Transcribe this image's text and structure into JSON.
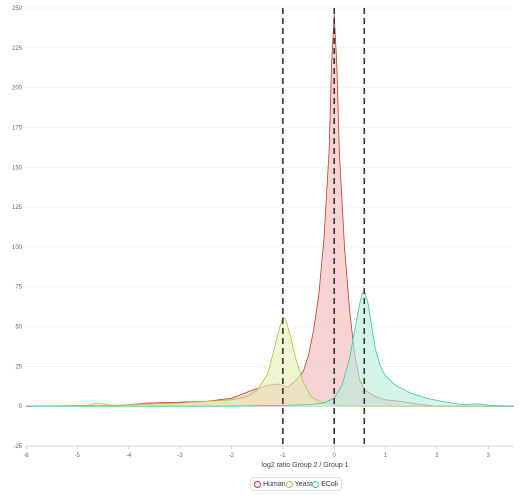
{
  "chart_data": {
    "type": "area",
    "xlabel": "log2 ratio Group 2 / Group 1",
    "ylabel": "",
    "xlim": [
      -6,
      3.5
    ],
    "ylim": [
      -25,
      250
    ],
    "x_ticks": [
      -6,
      -5,
      -4,
      -3,
      -2,
      -1,
      0,
      1,
      2,
      3
    ],
    "y_ticks": [
      -25,
      0,
      25,
      50,
      75,
      100,
      125,
      150,
      175,
      200,
      225,
      250
    ],
    "grid": "horizontal dashed",
    "legend_position": "bottom",
    "vertical_lines": [
      -1,
      0,
      0.585
    ],
    "series": [
      {
        "name": "Human",
        "color": "#c0392b",
        "fill": "#f4b6b8",
        "x": [
          -6,
          -4.2,
          -3.6,
          -3.0,
          -2.5,
          -2.0,
          -1.6,
          -1.3,
          -1.1,
          -0.9,
          -0.75,
          -0.6,
          -0.5,
          -0.4,
          -0.3,
          -0.2,
          -0.1,
          -0.05,
          0.0,
          0.05,
          0.1,
          0.2,
          0.3,
          0.4,
          0.5,
          0.6,
          0.8,
          1.0,
          1.3,
          1.7,
          2.0,
          3.5
        ],
        "y": [
          0,
          0.5,
          2,
          2.5,
          3,
          5,
          10,
          13,
          14,
          12,
          16,
          22,
          32,
          48,
          70,
          105,
          160,
          215,
          246,
          215,
          160,
          100,
          60,
          32,
          16,
          10,
          6,
          4,
          3,
          1,
          0,
          0
        ]
      },
      {
        "name": "Yeast",
        "color": "#a4c639",
        "fill": "#e2eeb3",
        "x": [
          -6,
          -4.8,
          -4.6,
          -4.3,
          -4.0,
          -3.5,
          -3.0,
          -2.5,
          -2.0,
          -1.7,
          -1.5,
          -1.3,
          -1.2,
          -1.1,
          -1.0,
          -0.95,
          -0.85,
          -0.75,
          -0.6,
          -0.45,
          -0.3,
          -0.1,
          0.1,
          0.4,
          0.8,
          3.5
        ],
        "y": [
          0,
          0.5,
          2,
          0.5,
          1,
          1.5,
          2,
          3,
          4,
          6,
          10,
          20,
          32,
          45,
          56,
          55,
          44,
          30,
          15,
          6,
          3,
          1.5,
          0.5,
          0,
          0,
          0
        ]
      },
      {
        "name": "EColi",
        "color": "#2ecc9a",
        "fill": "#b8eddc",
        "x": [
          -6,
          -2.0,
          -1.0,
          -0.5,
          -0.2,
          0.0,
          0.15,
          0.3,
          0.4,
          0.5,
          0.55,
          0.6,
          0.65,
          0.72,
          0.8,
          0.9,
          1.0,
          1.2,
          1.5,
          1.8,
          2.1,
          2.5,
          2.8,
          3.0,
          3.5
        ],
        "y": [
          0,
          0,
          0.5,
          1,
          2,
          5,
          13,
          30,
          48,
          65,
          71,
          71,
          66,
          52,
          36,
          25,
          19,
          13,
          8,
          5,
          3,
          1,
          1.5,
          0.5,
          0
        ]
      }
    ]
  }
}
